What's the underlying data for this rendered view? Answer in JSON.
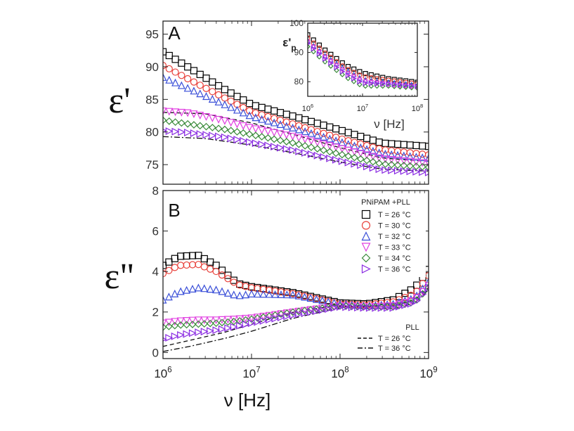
{
  "chart_data": [
    {
      "panel": "A",
      "type": "scatter",
      "ylabel": "ε'",
      "xlabel": "",
      "xscale": "log",
      "xlim": [
        1000000,
        1000000000
      ],
      "ylim": [
        72,
        97
      ],
      "yticks": [
        75,
        80,
        85,
        90,
        95
      ],
      "xticks": [
        "10^6",
        "10^7",
        "10^8",
        "10^9"
      ],
      "series": [
        {
          "name": "T = 26 °C",
          "color": "#000000",
          "marker": "square",
          "x": [
            1000000,
            2000000,
            5000000,
            10000000,
            30000000,
            100000000,
            300000000,
            1000000000
          ],
          "y": [
            92.3,
            89.8,
            86.5,
            84.2,
            82.4,
            80.3,
            78.3,
            77.8
          ]
        },
        {
          "name": "T = 30 °C",
          "color": "#e8403a",
          "marker": "circle",
          "x": [
            1000000,
            2000000,
            5000000,
            10000000,
            30000000,
            100000000,
            300000000,
            1000000000
          ],
          "y": [
            90.2,
            88.0,
            85.2,
            83.1,
            81.2,
            79.0,
            77.3,
            76.5
          ]
        },
        {
          "name": "T = 32 °C",
          "color": "#3a4fd8",
          "marker": "triangle-up",
          "x": [
            1000000,
            2000000,
            5000000,
            10000000,
            30000000,
            100000000,
            300000000,
            1000000000
          ],
          "y": [
            88.4,
            86.6,
            84.2,
            82.4,
            80.6,
            78.5,
            76.7,
            76.0
          ]
        },
        {
          "name": "T = 33 °C",
          "color": "#e040e0",
          "marker": "triangle-down",
          "x": [
            1000000,
            2000000,
            5000000,
            10000000,
            30000000,
            100000000,
            300000000,
            1000000000
          ],
          "y": [
            83.2,
            82.9,
            81.7,
            80.6,
            79.3,
            77.5,
            75.9,
            75.2
          ]
        },
        {
          "name": "T = 34 °C",
          "color": "#3a8a3a",
          "marker": "diamond",
          "x": [
            1000000,
            2000000,
            5000000,
            10000000,
            30000000,
            100000000,
            300000000,
            1000000000
          ],
          "y": [
            81.8,
            81.2,
            80.4,
            79.6,
            78.3,
            76.6,
            75.1,
            74.6
          ]
        },
        {
          "name": "T = 36 °C",
          "color": "#8a2be2",
          "marker": "triangle-right",
          "x": [
            1000000,
            2000000,
            5000000,
            10000000,
            30000000,
            100000000,
            300000000,
            1000000000
          ],
          "y": [
            80.2,
            79.9,
            79.2,
            78.4,
            77.2,
            75.6,
            74.2,
            73.8
          ]
        }
      ],
      "lines": [
        {
          "name": "T = 26 °C",
          "style": "dashed",
          "x": [
            1000000,
            3000000,
            10000000,
            30000000,
            100000000,
            300000000,
            1000000000
          ],
          "y": [
            83.0,
            82.8,
            81.4,
            79.6,
            77.6,
            76.0,
            75.5
          ]
        },
        {
          "name": "T = 36 °C",
          "style": "dashdot",
          "x": [
            1000000,
            3000000,
            10000000,
            30000000,
            100000000,
            300000000,
            1000000000
          ],
          "y": [
            79.3,
            79.0,
            78.0,
            76.8,
            75.4,
            74.3,
            74.0
          ]
        }
      ],
      "inset": {
        "ylabel": "ε'p",
        "xlabel": "ν [Hz]",
        "xlim": [
          1000000,
          100000000
        ],
        "ylim": [
          75,
          100
        ],
        "yticks": [
          80,
          90,
          100
        ],
        "xticks": [
          "10^6",
          "10^7",
          "10^8"
        ],
        "series": [
          {
            "color": "#000000",
            "x": [
              1000000,
              2000000,
              5000000,
              10000000,
              30000000,
              100000000
            ],
            "y": [
              96.0,
              91.0,
              85.5,
              83.0,
              81.0,
              79.8
            ]
          },
          {
            "color": "#e8403a",
            "x": [
              1000000,
              2000000,
              5000000,
              10000000,
              30000000,
              100000000
            ],
            "y": [
              95.0,
              90.0,
              84.5,
              81.8,
              80.5,
              79.3
            ]
          },
          {
            "color": "#3a4fd8",
            "x": [
              1000000,
              2000000,
              5000000,
              10000000,
              30000000,
              100000000
            ],
            "y": [
              94.0,
              89.0,
              84.0,
              80.7,
              79.8,
              78.8
            ]
          },
          {
            "color": "#e040e0",
            "x": [
              1000000,
              2000000,
              5000000,
              10000000,
              30000000,
              100000000
            ],
            "y": [
              93.5,
              88.5,
              83.0,
              80.0,
              79.0,
              78.0
            ]
          },
          {
            "color": "#3a8a3a",
            "x": [
              1000000,
              2000000,
              5000000,
              10000000,
              30000000,
              100000000
            ],
            "y": [
              92.0,
              87.0,
              81.5,
              78.5,
              78.5,
              77.8
            ]
          },
          {
            "color": "#8a2be2",
            "x": [
              1000000,
              2000000,
              5000000,
              10000000,
              30000000,
              100000000
            ],
            "y": [
              93.0,
              88.0,
              82.5,
              79.5,
              79.2,
              78.4
            ]
          }
        ]
      }
    },
    {
      "panel": "B",
      "type": "scatter",
      "ylabel": "ε\"",
      "xlabel": "ν [Hz]",
      "xscale": "log",
      "xlim": [
        1000000,
        1000000000
      ],
      "ylim": [
        -0.3,
        8
      ],
      "yticks": [
        0,
        2,
        4,
        6,
        8
      ],
      "xticks": [
        "10^6",
        "10^7",
        "10^8",
        "10^9"
      ],
      "legend_title": "PNiPAM +PLL",
      "legend_title_lines": "PLL",
      "legend_position": "top-right",
      "series": [
        {
          "name": "T = 26 °C",
          "color": "#000000",
          "marker": "square",
          "x": [
            1000000,
            1500000,
            2500000,
            4000000,
            7000000,
            10000000,
            30000000,
            100000000,
            200000000,
            400000000,
            700000000,
            1000000000
          ],
          "y": [
            4.3,
            4.75,
            4.8,
            4.3,
            3.4,
            3.25,
            2.95,
            2.45,
            2.4,
            2.6,
            3.2,
            4.1
          ]
        },
        {
          "name": "T = 30 °C",
          "color": "#e8403a",
          "marker": "circle",
          "x": [
            1000000,
            1500000,
            2500000,
            4000000,
            7000000,
            10000000,
            30000000,
            100000000,
            200000000,
            400000000,
            700000000,
            1000000000
          ],
          "y": [
            3.9,
            4.3,
            4.35,
            4.0,
            3.35,
            3.2,
            2.9,
            2.4,
            2.35,
            2.5,
            2.9,
            3.8
          ]
        },
        {
          "name": "T = 32 °C",
          "color": "#3a4fd8",
          "marker": "triangle-up",
          "x": [
            1000000,
            1500000,
            2500000,
            4000000,
            7000000,
            10000000,
            30000000,
            100000000,
            200000000,
            400000000,
            700000000,
            1000000000
          ],
          "y": [
            2.6,
            3.0,
            3.2,
            3.1,
            2.8,
            2.9,
            2.85,
            2.4,
            2.3,
            2.4,
            2.7,
            3.5
          ]
        },
        {
          "name": "T = 33 °C",
          "color": "#e040e0",
          "marker": "triangle-down",
          "x": [
            1000000,
            1500000,
            2500000,
            4000000,
            7000000,
            10000000,
            30000000,
            100000000,
            200000000,
            400000000,
            700000000,
            1000000000
          ],
          "y": [
            1.45,
            1.55,
            1.6,
            1.6,
            1.65,
            1.7,
            2.0,
            2.3,
            2.25,
            2.3,
            2.6,
            3.3
          ]
        },
        {
          "name": "T = 34 °C",
          "color": "#3a8a3a",
          "marker": "diamond",
          "x": [
            1000000,
            1500000,
            2500000,
            4000000,
            7000000,
            10000000,
            30000000,
            100000000,
            200000000,
            400000000,
            700000000,
            1000000000
          ],
          "y": [
            1.25,
            1.35,
            1.4,
            1.45,
            1.55,
            1.65,
            2.0,
            2.3,
            2.25,
            2.25,
            2.5,
            3.2
          ]
        },
        {
          "name": "T = 36 °C",
          "color": "#8a2be2",
          "marker": "triangle-right",
          "x": [
            1000000,
            1500000,
            2500000,
            4000000,
            7000000,
            10000000,
            30000000,
            100000000,
            200000000,
            400000000,
            700000000,
            1000000000
          ],
          "y": [
            0.65,
            0.85,
            1.0,
            1.1,
            1.3,
            1.45,
            1.85,
            2.25,
            2.2,
            2.2,
            2.45,
            3.2
          ]
        }
      ],
      "lines": [
        {
          "name": "T = 26 °C",
          "style": "dashed",
          "x": [
            1000000,
            2000000,
            5000000,
            10000000,
            30000000,
            100000000,
            200000000,
            400000000,
            700000000,
            1000000000
          ],
          "y": [
            0.3,
            0.6,
            1.0,
            1.4,
            2.0,
            2.35,
            2.3,
            2.3,
            2.6,
            3.2
          ]
        },
        {
          "name": "T = 36 °C",
          "style": "dashdot",
          "x": [
            1000000,
            2000000,
            5000000,
            10000000,
            30000000,
            100000000,
            200000000,
            400000000,
            700000000,
            1000000000
          ],
          "y": [
            0.05,
            0.3,
            0.7,
            1.05,
            1.7,
            2.2,
            2.2,
            2.15,
            2.45,
            3.1
          ]
        }
      ]
    }
  ]
}
